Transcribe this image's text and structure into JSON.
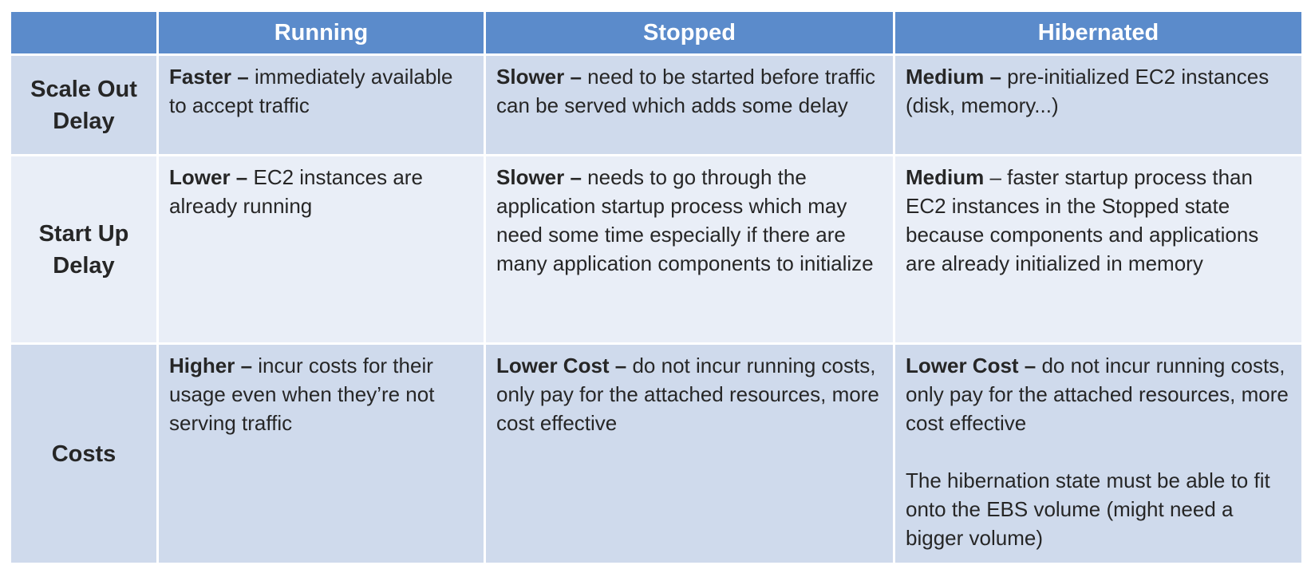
{
  "columns": [
    "",
    "Running",
    "Stopped",
    "Hibernated"
  ],
  "rows": [
    {
      "label": "Scale Out Delay",
      "cells": [
        {
          "lead": "Faster –",
          "text": " immediately available to accept traffic"
        },
        {
          "lead": "Slower –",
          "text": " need to be started before traffic can be served which adds some delay"
        },
        {
          "lead": "Medium –",
          "text": " pre-initialized EC2 instances (disk, memory...)"
        }
      ]
    },
    {
      "label": "Start Up Delay",
      "cells": [
        {
          "lead": "Lower –",
          "text": " EC2 instances are already running"
        },
        {
          "lead": "Slower –",
          "text": " needs to go through the application startup process which may need some time especially if there are many application components to initialize"
        },
        {
          "lead": "Medium",
          "text": " – faster startup process than EC2 instances in the Stopped state because components and applications are already initialized in memory"
        }
      ]
    },
    {
      "label": "Costs",
      "cells": [
        {
          "lead": "Higher –",
          "text": " incur costs for their usage even when they’re not serving traffic"
        },
        {
          "lead": "Lower Cost –",
          "text": " do not incur running costs, only pay for the attached resources, more cost effective"
        },
        {
          "lead": "Lower Cost –",
          "text": " do not incur running costs, only pay for the attached resources, more cost effective",
          "note": "The hibernation state must be able to fit onto the EBS volume (might need a bigger volume)"
        }
      ]
    }
  ],
  "colors": {
    "header_bg": "#5b8bcb",
    "header_text": "#ffffff",
    "row_dark": "#cfdaec",
    "row_light": "#e9eef7",
    "body_text": "#262626"
  }
}
